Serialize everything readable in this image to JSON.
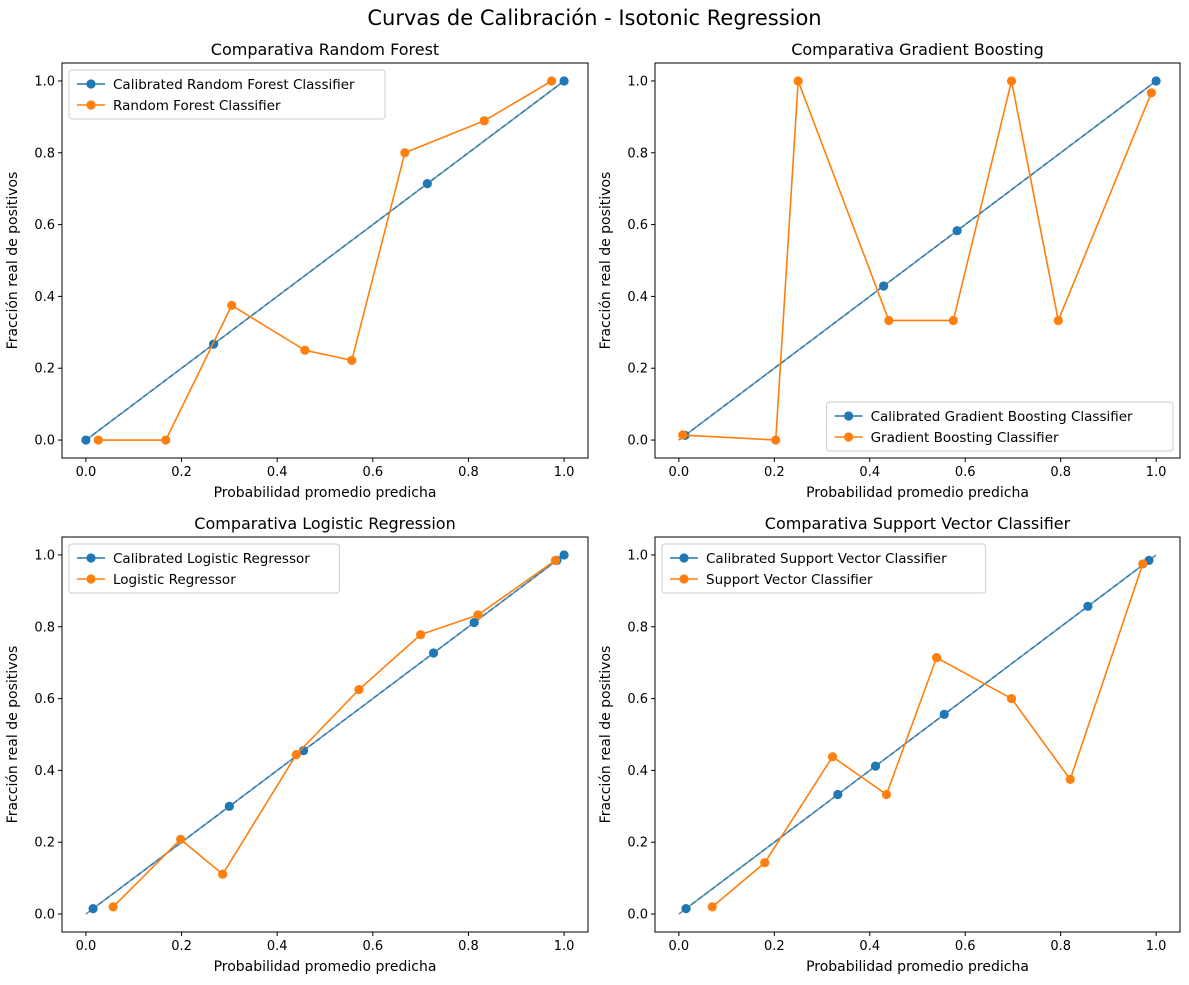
{
  "figure": {
    "title": "Curvas de Calibración - Isotonic Regression"
  },
  "colors": {
    "calibrated": "#1f77b4",
    "original": "#ff7f0e",
    "diagonal": "#7f7f7f"
  },
  "chart_data": [
    {
      "type": "line",
      "title": "Comparativa Random Forest",
      "xlabel": "Probabilidad promedio predicha",
      "ylabel": "Fracción real de positivos",
      "xlim": [
        -0.05,
        1.05
      ],
      "ylim": [
        -0.05,
        1.05
      ],
      "xticks": [
        "0.0",
        "0.2",
        "0.4",
        "0.6",
        "0.8",
        "1.0"
      ],
      "yticks": [
        "0.0",
        "0.2",
        "0.4",
        "0.6",
        "0.8",
        "1.0"
      ],
      "legend_position": "upper-left",
      "reference_line": [
        [
          0,
          0
        ],
        [
          1,
          1
        ]
      ],
      "series": [
        {
          "name": "Calibrated Random Forest Classifier",
          "x": [
            0.0,
            0.267,
            0.714,
            1.0
          ],
          "y": [
            0.0,
            0.267,
            0.714,
            1.0
          ]
        },
        {
          "name": "Random Forest Classifier",
          "x": [
            0.026,
            0.167,
            0.305,
            0.458,
            0.556,
            0.667,
            0.833,
            0.974
          ],
          "y": [
            0.0,
            0.0,
            0.375,
            0.25,
            0.222,
            0.8,
            0.889,
            1.0
          ]
        }
      ]
    },
    {
      "type": "line",
      "title": "Comparativa Gradient Boosting",
      "xlabel": "Probabilidad promedio predicha",
      "ylabel": "Fracción real de positivos",
      "xlim": [
        -0.05,
        1.05
      ],
      "ylim": [
        -0.05,
        1.05
      ],
      "xticks": [
        "0.0",
        "0.2",
        "0.4",
        "0.6",
        "0.8",
        "1.0"
      ],
      "yticks": [
        "0.0",
        "0.2",
        "0.4",
        "0.6",
        "0.8",
        "1.0"
      ],
      "legend_position": "lower-right",
      "reference_line": [
        [
          0,
          0
        ],
        [
          1,
          1
        ]
      ],
      "series": [
        {
          "name": "Calibrated Gradient Boosting Classifier",
          "x": [
            0.013,
            0.429,
            0.583,
            1.0
          ],
          "y": [
            0.013,
            0.429,
            0.583,
            1.0
          ]
        },
        {
          "name": "Gradient Boosting Classifier",
          "x": [
            0.008,
            0.203,
            0.25,
            0.44,
            0.575,
            0.697,
            0.795,
            0.99
          ],
          "y": [
            0.014,
            0.0,
            1.0,
            0.333,
            0.333,
            1.0,
            0.333,
            0.967
          ]
        }
      ]
    },
    {
      "type": "line",
      "title": "Comparativa Logistic Regression",
      "xlabel": "Probabilidad promedio predicha",
      "ylabel": "Fracción real de positivos",
      "xlim": [
        -0.05,
        1.05
      ],
      "ylim": [
        -0.05,
        1.05
      ],
      "xticks": [
        "0.0",
        "0.2",
        "0.4",
        "0.6",
        "0.8",
        "1.0"
      ],
      "yticks": [
        "0.0",
        "0.2",
        "0.4",
        "0.6",
        "0.8",
        "1.0"
      ],
      "legend_position": "upper-left",
      "reference_line": [
        [
          0,
          0
        ],
        [
          1,
          1
        ]
      ],
      "series": [
        {
          "name": "Calibrated Logistic Regressor",
          "x": [
            0.015,
            0.3,
            0.455,
            0.727,
            0.812,
            0.985,
            1.0
          ],
          "y": [
            0.015,
            0.3,
            0.455,
            0.727,
            0.812,
            0.985,
            1.0
          ]
        },
        {
          "name": "Logistic Regressor",
          "x": [
            0.057,
            0.198,
            0.286,
            0.44,
            0.571,
            0.7,
            0.82,
            0.982
          ],
          "y": [
            0.02,
            0.208,
            0.111,
            0.444,
            0.625,
            0.778,
            0.833,
            0.985
          ]
        }
      ]
    },
    {
      "type": "line",
      "title": "Comparativa Support Vector Classifier",
      "xlabel": "Probabilidad promedio predicha",
      "ylabel": "Fracción real de positivos",
      "xlim": [
        -0.05,
        1.05
      ],
      "ylim": [
        -0.05,
        1.05
      ],
      "xticks": [
        "0.0",
        "0.2",
        "0.4",
        "0.6",
        "0.8",
        "1.0"
      ],
      "yticks": [
        "0.0",
        "0.2",
        "0.4",
        "0.6",
        "0.8",
        "1.0"
      ],
      "legend_position": "upper-left",
      "reference_line": [
        [
          0,
          0
        ],
        [
          1,
          1
        ]
      ],
      "series": [
        {
          "name": "Calibrated Support Vector Classifier",
          "x": [
            0.015,
            0.333,
            0.412,
            0.556,
            0.857,
            0.985
          ],
          "y": [
            0.015,
            0.333,
            0.412,
            0.556,
            0.857,
            0.985
          ]
        },
        {
          "name": "Support Vector Classifier",
          "x": [
            0.07,
            0.18,
            0.322,
            0.435,
            0.54,
            0.697,
            0.82,
            0.972
          ],
          "y": [
            0.02,
            0.143,
            0.438,
            0.333,
            0.714,
            0.6,
            0.375,
            0.975
          ]
        }
      ]
    }
  ]
}
